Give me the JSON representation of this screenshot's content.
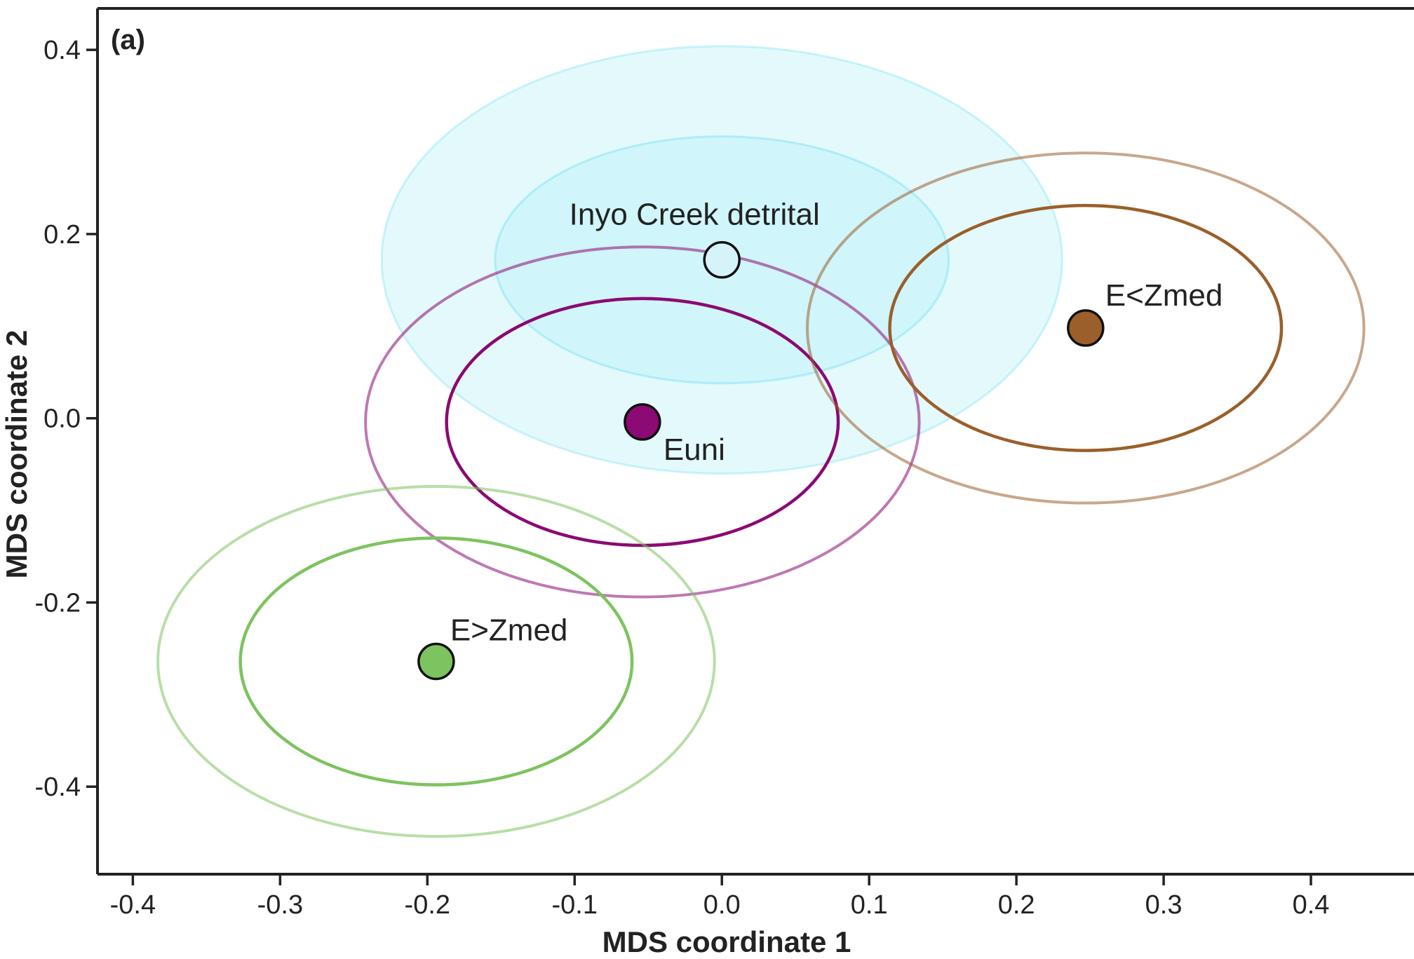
{
  "chart_data": {
    "type": "scatter",
    "panel_label": "(a)",
    "xlabel": "MDS coordinate 1",
    "ylabel": "MDS coordinate 2",
    "xlim": [
      -0.424,
      0.47
    ],
    "ylim": [
      -0.495,
      0.445
    ],
    "xticks": [
      -0.4,
      -0.3,
      -0.2,
      -0.1,
      0.0,
      0.1,
      0.2,
      0.3,
      0.4
    ],
    "xtick_labels": [
      "-0.4",
      "-0.3",
      "-0.2",
      "-0.1",
      "0.0",
      "0.1",
      "0.2",
      "0.3",
      "0.4"
    ],
    "yticks": [
      -0.4,
      -0.2,
      0.0,
      0.2,
      0.4
    ],
    "ytick_labels": [
      "-0.4",
      "-0.2",
      "0.0",
      "0.2",
      "0.4"
    ],
    "grid": false,
    "points": [
      {
        "label": "Inyo Creek detrital",
        "x": 0.0,
        "y": 0.172,
        "fill": "#d6f3fa",
        "color": "#8fe6f5",
        "filled_regions": true,
        "inner_ellipse": {
          "rx": 0.154,
          "ry": 0.134
        },
        "outer_ellipse": {
          "rx": 0.231,
          "ry": 0.232
        }
      },
      {
        "label": "Euni",
        "x": -0.054,
        "y": -0.004,
        "fill": "#8b0a73",
        "color": "#8b0a73",
        "filled_regions": false,
        "inner_ellipse": {
          "rx": 0.133,
          "ry": 0.134
        },
        "outer_ellipse": {
          "rx": 0.188,
          "ry": 0.19
        }
      },
      {
        "label": "E<Zmed",
        "x": 0.247,
        "y": 0.098,
        "fill": "#9a5f2b",
        "color": "#9a5f2b",
        "filled_regions": false,
        "inner_ellipse": {
          "rx": 0.133,
          "ry": 0.133
        },
        "outer_ellipse": {
          "rx": 0.189,
          "ry": 0.19
        }
      },
      {
        "label": "E>Zmed",
        "x": -0.194,
        "y": -0.264,
        "fill": "#7dc35f",
        "color": "#7dc35f",
        "filled_regions": false,
        "inner_ellipse": {
          "rx": 0.133,
          "ry": 0.134
        },
        "outer_ellipse": {
          "rx": 0.189,
          "ry": 0.19
        }
      }
    ]
  }
}
